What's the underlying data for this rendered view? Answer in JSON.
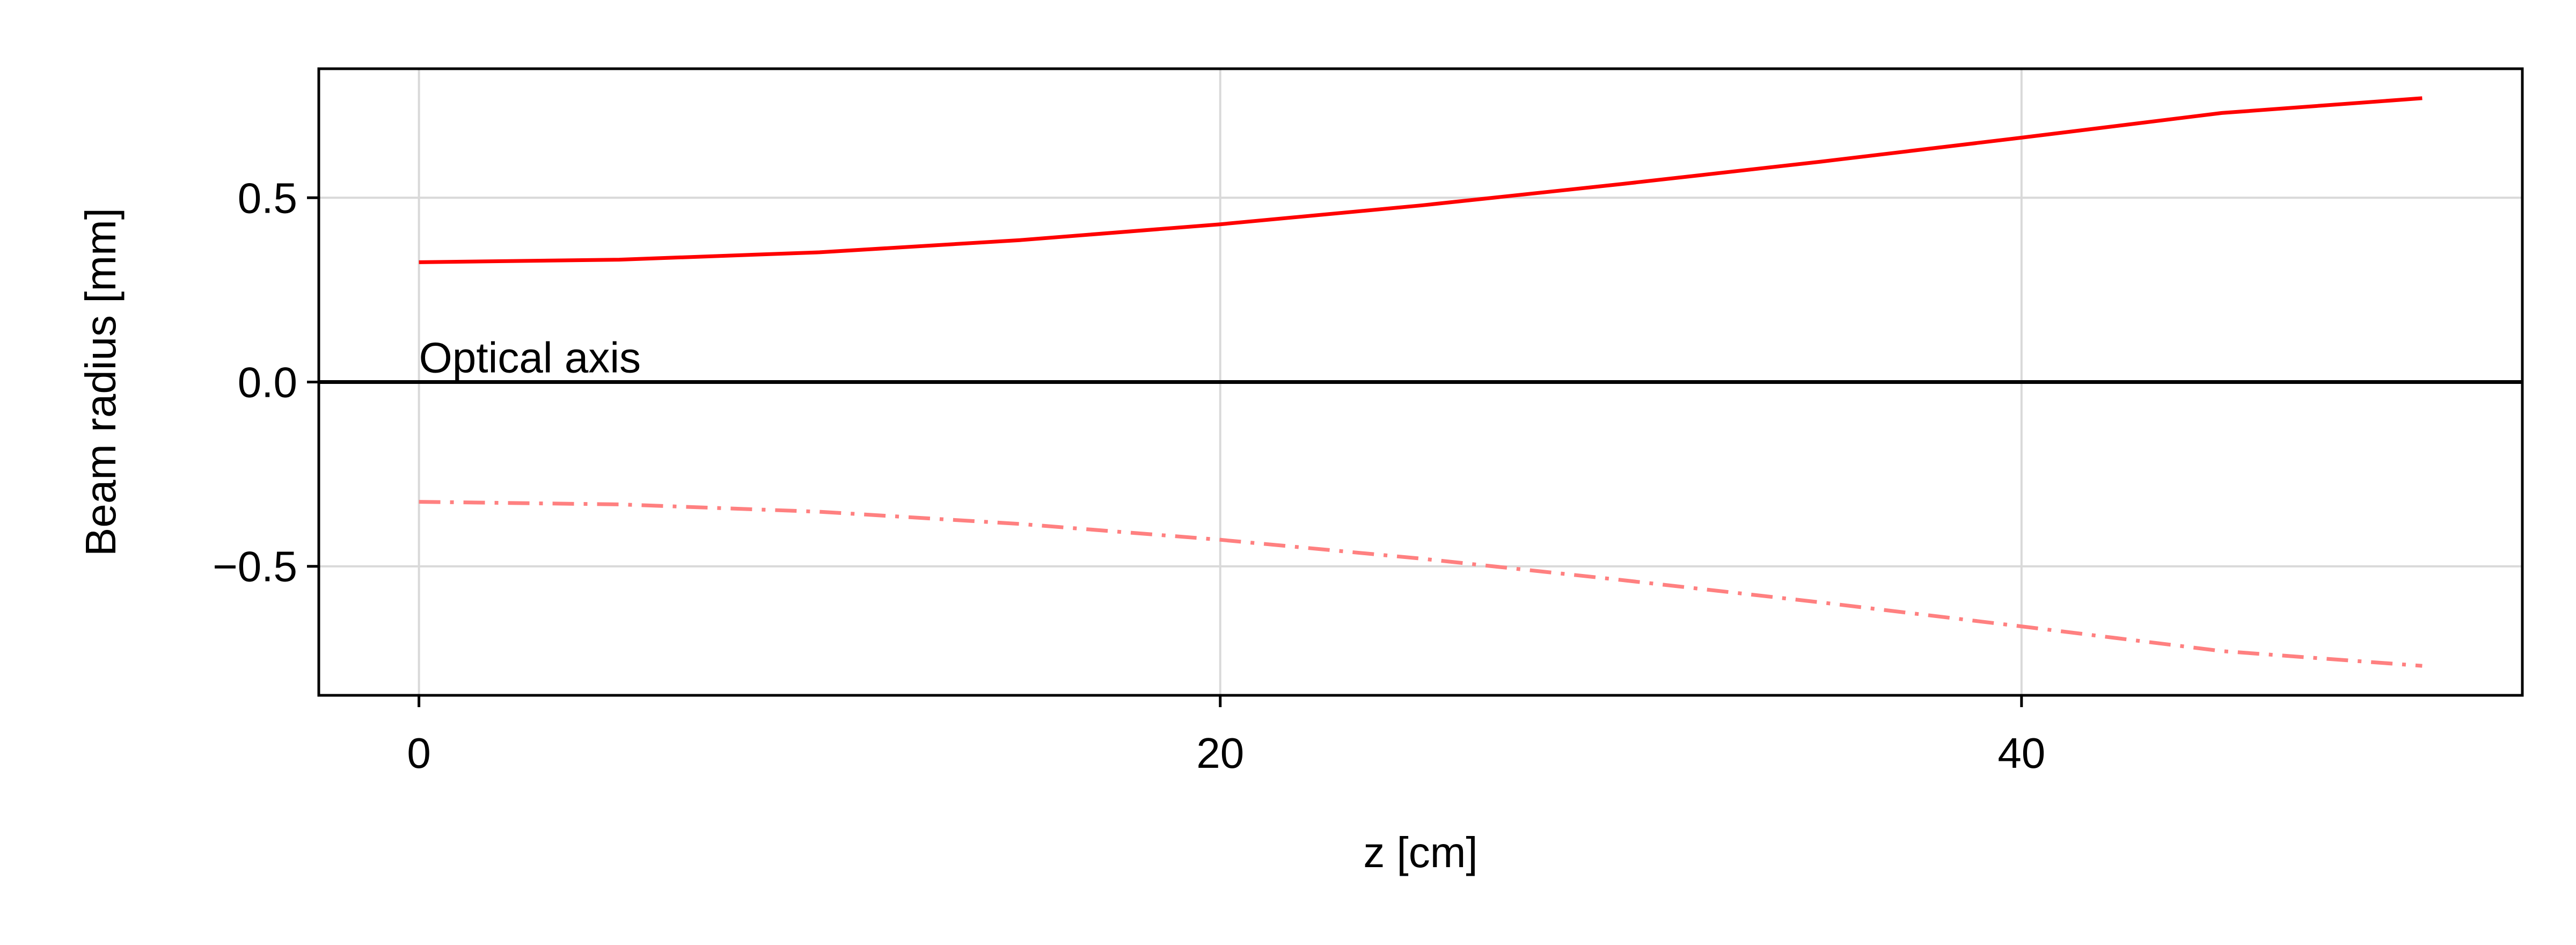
{
  "chart_data": {
    "type": "line",
    "title": "",
    "xlabel": "z [cm]",
    "ylabel": "Beam radius [mm]",
    "xlim": [
      -2.5,
      52.5
    ],
    "ylim": [
      -0.85,
      0.85
    ],
    "xticks": [
      0,
      20,
      40
    ],
    "xtick_labels": [
      "0",
      "20",
      "40"
    ],
    "yticks": [
      -0.5,
      0.0,
      0.5
    ],
    "ytick_labels": [
      "−0.5",
      "0.0",
      "0.5"
    ],
    "grid": true,
    "annotation": {
      "text": "Optical axis",
      "x": 0,
      "y": 0.0
    },
    "axis_line": {
      "y": 0.0,
      "color": "#000000"
    },
    "series": [
      {
        "style": "solid",
        "color": "#ff0000",
        "x": [
          0,
          5,
          10,
          15,
          20,
          25,
          30,
          35,
          40,
          45,
          50
        ],
        "y": [
          0.325,
          0.332,
          0.352,
          0.385,
          0.428,
          0.479,
          0.537,
          0.598,
          0.663,
          0.73,
          0.77
        ]
      },
      {
        "style": "dashdot",
        "color": "#ff8080",
        "x": [
          0,
          5,
          10,
          15,
          20,
          25,
          30,
          35,
          40,
          45,
          50
        ],
        "y": [
          -0.325,
          -0.332,
          -0.352,
          -0.385,
          -0.428,
          -0.479,
          -0.537,
          -0.598,
          -0.663,
          -0.73,
          -0.77
        ]
      }
    ]
  }
}
